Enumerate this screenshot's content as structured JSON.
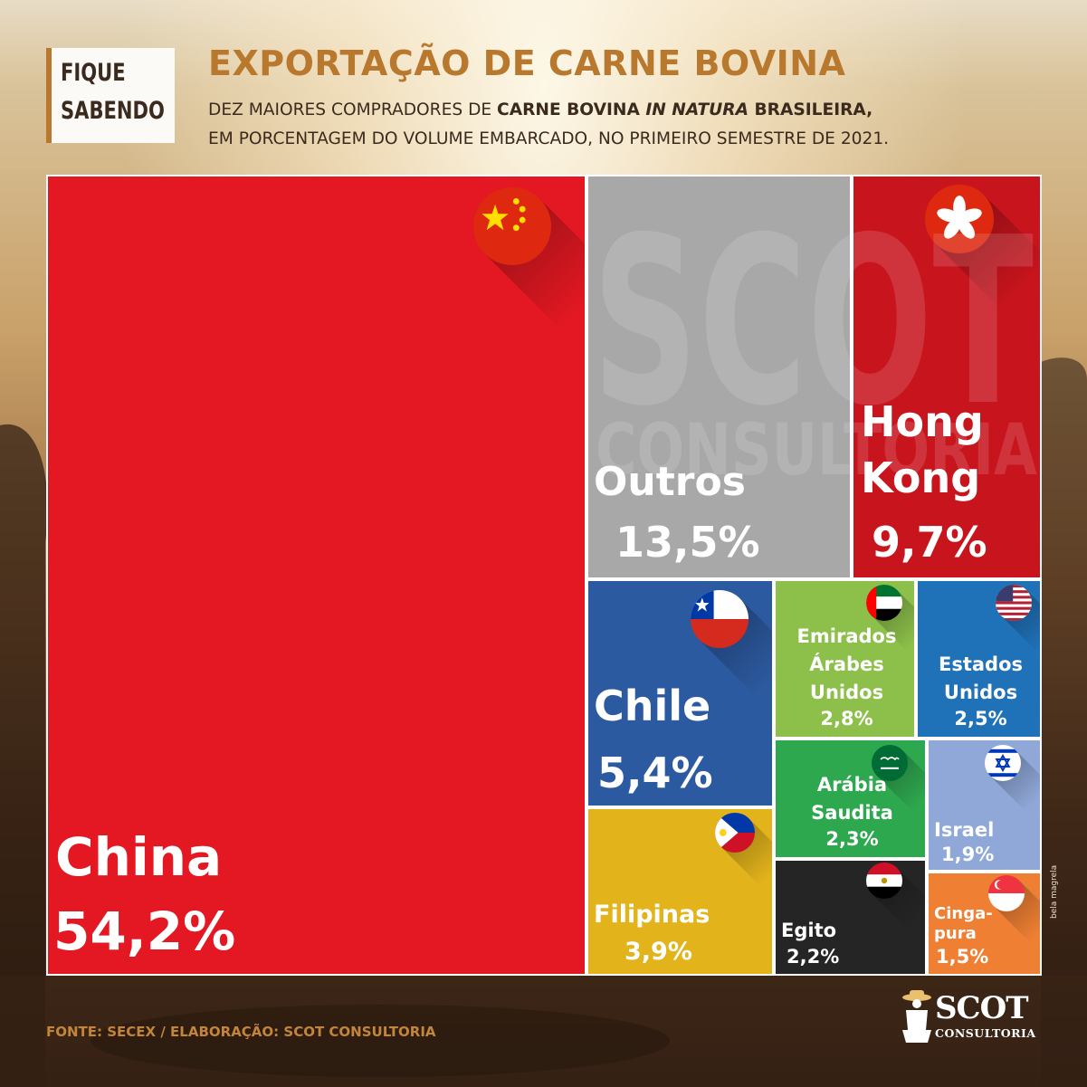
{
  "header": {
    "badge_line1": "FIQUE",
    "badge_line2": "SABENDO",
    "title": "EXPORTAÇÃO DE CARNE BOVINA",
    "subtitle_a": "DEZ MAIORES COMPRADORES DE ",
    "subtitle_b": "CARNE BOVINA ",
    "subtitle_c": "IN NATURA",
    "subtitle_d": " BRASILEIRA,",
    "subtitle_line2": "EM PORCENTAGEM DO VOLUME EMBARCADO, NO PRIMEIRO SEMESTRE DE 2021."
  },
  "watermark": {
    "line1": "SCOT",
    "line2": "CONSULTORIA"
  },
  "chart_data": {
    "type": "treemap",
    "unit": "%",
    "items": [
      {
        "name": "China",
        "label": "China",
        "value": 54.2,
        "value_label": "54,2%",
        "color": "#e31822",
        "icon": "china-flag-icon"
      },
      {
        "name": "Outros",
        "label": "Outros",
        "value": 13.5,
        "value_label": "13,5%",
        "color": "#a8a8a8",
        "icon": ""
      },
      {
        "name": "Hong Kong",
        "label": "Hong\nKong",
        "value": 9.7,
        "value_label": "9,7%",
        "color": "#c8141d",
        "icon": "hong-kong-flag-icon"
      },
      {
        "name": "Chile",
        "label": "Chile",
        "value": 5.4,
        "value_label": "5,4%",
        "color": "#2c5aa0",
        "icon": "chile-flag-icon"
      },
      {
        "name": "Filipinas",
        "label": "Filipinas",
        "value": 3.9,
        "value_label": "3,9%",
        "color": "#e3b31c",
        "icon": "philippines-flag-icon"
      },
      {
        "name": "Emirados Árabes Unidos",
        "label": "Emirados\nÁrabes\nUnidos",
        "value": 2.8,
        "value_label": "2,8%",
        "color": "#8dc04a",
        "icon": "uae-flag-icon"
      },
      {
        "name": "Estados Unidos",
        "label": "Estados\nUnidos",
        "value": 2.5,
        "value_label": "2,5%",
        "color": "#1f71b8",
        "icon": "usa-flag-icon"
      },
      {
        "name": "Arábia Saudita",
        "label": "Arábia\nSaudita",
        "value": 2.3,
        "value_label": "2,3%",
        "color": "#2ea84f",
        "icon": "saudi-arabia-flag-icon"
      },
      {
        "name": "Israel",
        "label": "Israel",
        "value": 1.9,
        "value_label": "1,9%",
        "color": "#8fa8d8",
        "icon": "israel-flag-icon"
      },
      {
        "name": "Egito",
        "label": "Egito",
        "value": 2.2,
        "value_label": "2,2%",
        "color": "#252525",
        "icon": "egypt-flag-icon"
      },
      {
        "name": "Cingapura",
        "label": "Cinga-\npura",
        "value": 1.5,
        "value_label": "1,5%",
        "color": "#ee7f33",
        "icon": "singapore-flag-icon"
      }
    ]
  },
  "footer": {
    "source": "FONTE: SECEX / ELABORAÇÃO: SCOT CONSULTORIA",
    "logo_main": "SCOT",
    "logo_sub": "CONSULTORIA",
    "credit": "bela magrela"
  }
}
